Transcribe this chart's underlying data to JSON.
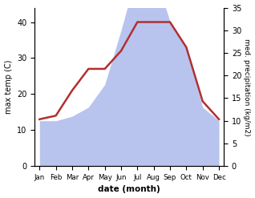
{
  "months": [
    "Jan",
    "Feb",
    "Mar",
    "Apr",
    "May",
    "Jun",
    "Jul",
    "Aug",
    "Sep",
    "Oct",
    "Nov",
    "Dec"
  ],
  "max_temp": [
    13,
    14,
    21,
    27,
    27,
    32,
    40,
    40,
    40,
    33,
    18,
    13
  ],
  "precipitation": [
    10,
    10,
    11,
    13,
    18,
    30,
    43,
    43,
    32,
    26,
    13,
    10
  ],
  "temp_color": "#b03030",
  "precip_color_fill": "#b8c4ee",
  "temp_ylim": [
    0,
    44
  ],
  "temp_yticks": [
    0,
    10,
    20,
    30,
    40
  ],
  "precip_ylim": [
    0,
    35
  ],
  "precip_yticks": [
    0,
    5,
    10,
    15,
    20,
    25,
    30,
    35
  ],
  "xlabel": "date (month)",
  "ylabel_left": "max temp (C)",
  "ylabel_right": "med. precipitation (kg/m2)",
  "background_color": "#ffffff",
  "line_width": 1.8,
  "scale_factor": 1.2571
}
